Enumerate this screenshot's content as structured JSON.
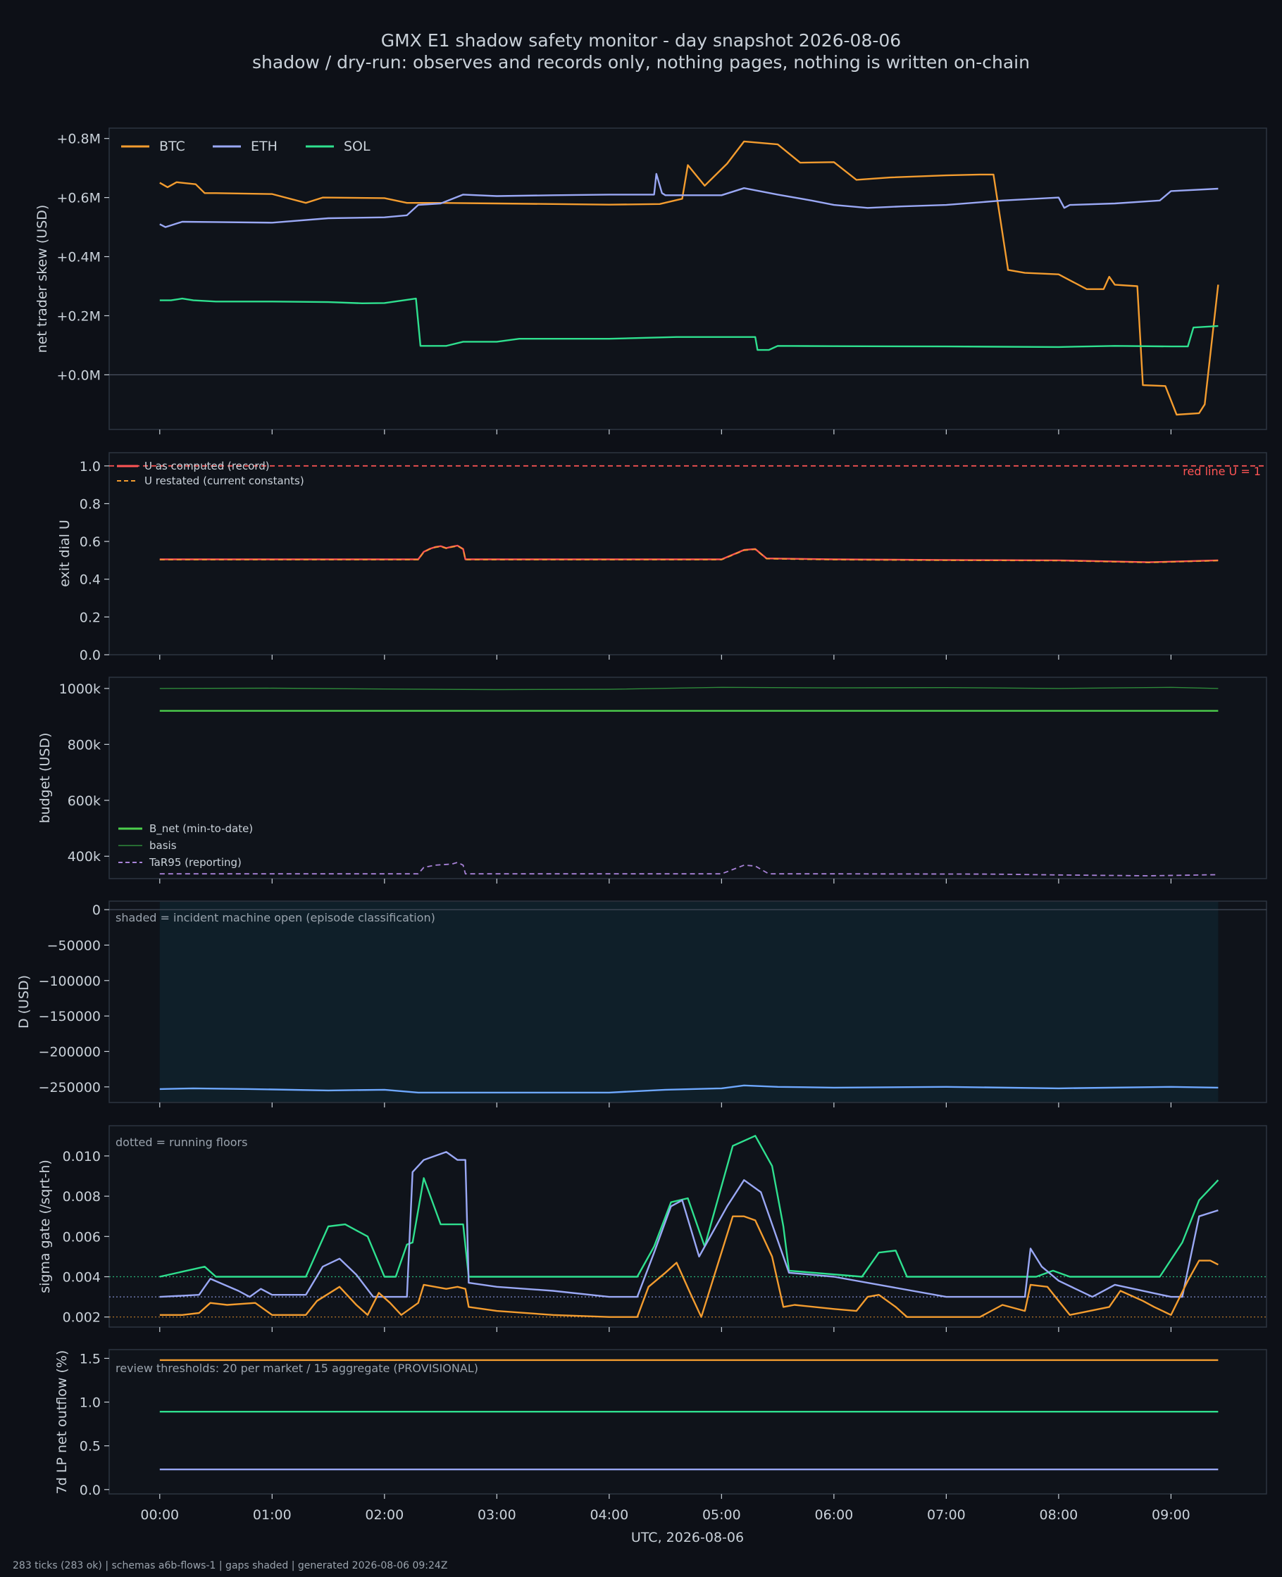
{
  "title": "GMX E1 shadow safety monitor - day snapshot 2026-08-06",
  "subtitle": "shadow / dry-run: observes and records only, nothing pages, nothing is written on-chain",
  "footer": "283 ticks (283 ok) | schemas a6b-flows-1 | gaps shaded | generated 2026-08-06 09:24Z",
  "colors": {
    "background": "#0d1017",
    "panel": "#0f131a",
    "btc": "#f39c2f",
    "eth": "#9aa8f5",
    "sol": "#2fe08f",
    "red": "#ff5555",
    "green": "#4ccf4c",
    "purple": "#a882d8",
    "blue": "#6ea8ff",
    "shade": "#0f1f29"
  },
  "chart_data": [
    {
      "type": "line",
      "ylabel": "net trader skew (USD)",
      "yticks": [
        "+0.8M",
        "+0.6M",
        "+0.4M",
        "+0.2M",
        "+0.0M"
      ],
      "ylim": [
        -185000,
        835000
      ],
      "legend": "top-left",
      "series": [
        {
          "name": "BTC",
          "color": "#f39c2f",
          "x": [
            0,
            0.07,
            0.15,
            0.32,
            0.4,
            0.5,
            1.0,
            1.3,
            1.45,
            2.0,
            2.2,
            2.5,
            3.0,
            4.0,
            4.45,
            4.65,
            4.7,
            4.85,
            5.05,
            5.2,
            5.5,
            5.7,
            6.0,
            6.2,
            6.5,
            7.0,
            7.3,
            7.42,
            7.55,
            7.7,
            8.0,
            8.25,
            8.4,
            8.45,
            8.5,
            8.7,
            8.75,
            8.95,
            9.05,
            9.25,
            9.3,
            9.42
          ],
          "y": [
            650000,
            635000,
            652000,
            645000,
            615000,
            615000,
            612000,
            582000,
            600000,
            598000,
            582000,
            582000,
            580000,
            576000,
            578000,
            596000,
            710000,
            640000,
            715000,
            790000,
            780000,
            718000,
            720000,
            660000,
            668000,
            675000,
            678000,
            678000,
            355000,
            345000,
            340000,
            290000,
            290000,
            332000,
            305000,
            300000,
            -35000,
            -38000,
            -135000,
            -130000,
            -100000,
            305000
          ]
        },
        {
          "name": "ETH",
          "color": "#9aa8f5",
          "x": [
            0,
            0.05,
            0.2,
            0.5,
            1.0,
            1.5,
            2.0,
            2.2,
            2.3,
            2.5,
            2.7,
            3.0,
            3.5,
            4.0,
            4.4,
            4.42,
            4.47,
            4.5,
            5.0,
            5.2,
            5.5,
            5.8,
            6.0,
            6.3,
            6.6,
            7.0,
            7.5,
            8.0,
            8.05,
            8.1,
            8.5,
            8.9,
            9.0,
            9.42
          ],
          "y": [
            510000,
            500000,
            518000,
            517000,
            515000,
            530000,
            533000,
            540000,
            575000,
            580000,
            610000,
            605000,
            608000,
            610000,
            610000,
            680000,
            615000,
            608000,
            608000,
            632000,
            610000,
            590000,
            575000,
            565000,
            570000,
            575000,
            590000,
            600000,
            565000,
            575000,
            580000,
            590000,
            622000,
            630000
          ]
        },
        {
          "name": "SOL",
          "color": "#2fe08f",
          "x": [
            0,
            0.1,
            0.2,
            0.3,
            0.5,
            1.0,
            1.5,
            1.8,
            2.0,
            2.28,
            2.32,
            2.55,
            2.7,
            3.0,
            3.2,
            4.0,
            4.3,
            4.6,
            5.0,
            5.3,
            5.32,
            5.42,
            5.5,
            6.0,
            7.0,
            8.0,
            8.5,
            9.0,
            9.15,
            9.2,
            9.42
          ],
          "y": [
            252000,
            252000,
            258000,
            252000,
            248000,
            248000,
            246000,
            242000,
            243000,
            258000,
            98000,
            98000,
            112000,
            112000,
            122000,
            122000,
            125000,
            128000,
            128000,
            128000,
            84000,
            84000,
            98000,
            97000,
            96000,
            94000,
            98000,
            96000,
            96000,
            160000,
            165000
          ]
        }
      ]
    },
    {
      "type": "line",
      "ylabel": "exit dial U",
      "yticks": [
        "0.0",
        "0.2",
        "0.4",
        "0.6",
        "0.8",
        "1.0"
      ],
      "ylim": [
        0,
        1.07
      ],
      "legend": "top-left",
      "annotation": "red line U = 1",
      "series": [
        {
          "name": "U as computed (record)",
          "color": "#ff5555",
          "style": "solid",
          "x": [
            0,
            2.3,
            2.35,
            2.4,
            2.45,
            2.5,
            2.55,
            2.6,
            2.65,
            2.7,
            2.72,
            5.0,
            5.2,
            5.3,
            5.4,
            6.0,
            7.0,
            8.0,
            8.8,
            9.42
          ],
          "y": [
            0.505,
            0.505,
            0.545,
            0.56,
            0.57,
            0.575,
            0.565,
            0.572,
            0.578,
            0.56,
            0.505,
            0.505,
            0.555,
            0.56,
            0.51,
            0.505,
            0.502,
            0.5,
            0.49,
            0.5
          ]
        },
        {
          "name": "U restated (current constants)",
          "color": "#f39c2f",
          "style": "dashed",
          "x": [
            0,
            2.3,
            2.35,
            2.4,
            2.45,
            2.5,
            2.55,
            2.6,
            2.65,
            2.7,
            2.72,
            5.0,
            5.2,
            5.3,
            5.4,
            6.0,
            7.0,
            8.0,
            8.8,
            9.42
          ],
          "y": [
            0.503,
            0.503,
            0.543,
            0.558,
            0.568,
            0.573,
            0.563,
            0.57,
            0.576,
            0.558,
            0.503,
            0.503,
            0.553,
            0.558,
            0.508,
            0.503,
            0.5,
            0.498,
            0.488,
            0.498
          ]
        }
      ],
      "reference_line": 1.0
    },
    {
      "type": "line",
      "ylabel": "budget (USD)",
      "yticks": [
        "400k",
        "600k",
        "800k",
        "1000k"
      ],
      "ylim": [
        320000,
        1040000
      ],
      "legend": "bottom-left",
      "series": [
        {
          "name": "B_net (min-to-date)",
          "color": "#4ccf4c",
          "style": "solid",
          "x": [
            0,
            9.42
          ],
          "y": [
            920000,
            920000
          ]
        },
        {
          "name": "basis",
          "color": "#2e8a3a",
          "style": "thin",
          "x": [
            0,
            1,
            2,
            3,
            4,
            5,
            6,
            7,
            8,
            9,
            9.42
          ],
          "y": [
            1000000,
            1001000,
            998000,
            996000,
            997000,
            1004000,
            1002000,
            1003000,
            1000000,
            1004000,
            1000000
          ]
        },
        {
          "name": "TaR95 (reporting)",
          "color": "#a882d8",
          "style": "dashed",
          "x": [
            0,
            2.3,
            2.35,
            2.45,
            2.6,
            2.65,
            2.7,
            2.72,
            5.0,
            5.2,
            5.3,
            5.42,
            6.0,
            7.4,
            8.0,
            8.8,
            9.42
          ],
          "y": [
            337000,
            337000,
            360000,
            368000,
            372000,
            378000,
            368000,
            337000,
            337000,
            368000,
            365000,
            337000,
            337000,
            336000,
            333000,
            330000,
            334000
          ]
        }
      ]
    },
    {
      "type": "line",
      "ylabel": "D (USD)",
      "yticks": [
        "0",
        "−50000",
        "−100000",
        "−150000",
        "−200000",
        "−250000"
      ],
      "ylim": [
        -272000,
        12000
      ],
      "note": "shaded = incident machine open (episode classification)",
      "shaded_range": [
        0,
        9.42
      ],
      "series": [
        {
          "name": "D",
          "color": "#6ea8ff",
          "x": [
            0,
            0.3,
            0.8,
            1.5,
            2.0,
            2.3,
            3.0,
            4.0,
            4.5,
            5.0,
            5.2,
            5.5,
            6.0,
            7.0,
            8.0,
            9.0,
            9.42
          ],
          "y": [
            -253000,
            -252000,
            -253000,
            -255000,
            -254000,
            -258000,
            -258000,
            -258000,
            -254000,
            -252000,
            -248000,
            -250000,
            -251000,
            -250000,
            -252000,
            -250000,
            -251000
          ]
        }
      ]
    },
    {
      "type": "line",
      "ylabel": "sigma gate (/sqrt-h)",
      "yticks": [
        "0.002",
        "0.004",
        "0.006",
        "0.008",
        "0.010"
      ],
      "ylim": [
        0.0015,
        0.0115
      ],
      "note": "dotted = running floors",
      "floors": [
        {
          "color": "#2fe08f",
          "y": 0.004
        },
        {
          "color": "#9aa8f5",
          "y": 0.003
        },
        {
          "color": "#f39c2f",
          "y": 0.002
        }
      ],
      "series": [
        {
          "name": "SOL",
          "color": "#2fe08f",
          "x": [
            0,
            0.4,
            0.5,
            1.3,
            1.5,
            1.65,
            1.85,
            2.0,
            2.1,
            2.2,
            2.25,
            2.35,
            2.5,
            2.7,
            2.75,
            4.25,
            4.4,
            4.55,
            4.7,
            4.85,
            5.1,
            5.3,
            5.45,
            5.55,
            5.6,
            6.25,
            6.4,
            6.55,
            6.65,
            7.8,
            7.95,
            8.1,
            8.9,
            9.1,
            9.25,
            9.42
          ],
          "y": [
            0.004,
            0.0045,
            0.004,
            0.004,
            0.0065,
            0.0066,
            0.006,
            0.004,
            0.004,
            0.0056,
            0.0057,
            0.0089,
            0.0066,
            0.0066,
            0.004,
            0.004,
            0.0055,
            0.0077,
            0.0079,
            0.0055,
            0.0105,
            0.011,
            0.0095,
            0.0065,
            0.0043,
            0.004,
            0.0052,
            0.0053,
            0.004,
            0.004,
            0.0043,
            0.004,
            0.004,
            0.0057,
            0.0078,
            0.0088
          ]
        },
        {
          "name": "ETH",
          "color": "#9aa8f5",
          "x": [
            0,
            0.35,
            0.45,
            0.7,
            0.8,
            0.9,
            1.0,
            1.3,
            1.45,
            1.6,
            1.75,
            1.9,
            2.2,
            2.25,
            2.35,
            2.45,
            2.55,
            2.65,
            2.72,
            2.75,
            3.0,
            3.5,
            4.0,
            4.25,
            4.4,
            4.55,
            4.65,
            4.8,
            5.05,
            5.2,
            5.35,
            5.55,
            5.6,
            6.0,
            7.0,
            7.7,
            7.75,
            7.85,
            8.0,
            8.3,
            8.5,
            9.0,
            9.1,
            9.25,
            9.42
          ],
          "y": [
            0.003,
            0.0031,
            0.0039,
            0.0033,
            0.003,
            0.0034,
            0.0031,
            0.0031,
            0.0045,
            0.0049,
            0.0041,
            0.003,
            0.003,
            0.0092,
            0.0098,
            0.01,
            0.0102,
            0.0098,
            0.0098,
            0.0037,
            0.0035,
            0.0033,
            0.003,
            0.003,
            0.0052,
            0.0075,
            0.0078,
            0.005,
            0.0075,
            0.0088,
            0.0082,
            0.005,
            0.0042,
            0.004,
            0.003,
            0.003,
            0.0054,
            0.0045,
            0.0038,
            0.003,
            0.0036,
            0.003,
            0.003,
            0.007,
            0.0073
          ]
        },
        {
          "name": "BTC",
          "color": "#f39c2f",
          "x": [
            0,
            0.2,
            0.35,
            0.45,
            0.6,
            0.85,
            1.0,
            1.3,
            1.4,
            1.6,
            1.75,
            1.85,
            1.95,
            2.05,
            2.15,
            2.3,
            2.35,
            2.45,
            2.55,
            2.65,
            2.72,
            2.75,
            3.0,
            3.5,
            4.0,
            4.25,
            4.35,
            4.5,
            4.6,
            4.72,
            4.82,
            5.1,
            5.2,
            5.3,
            5.45,
            5.55,
            5.65,
            6.0,
            6.2,
            6.3,
            6.4,
            6.55,
            6.65,
            7.3,
            7.5,
            7.7,
            7.75,
            7.9,
            8.1,
            8.45,
            8.55,
            8.75,
            8.85,
            9.0,
            9.15,
            9.25,
            9.35,
            9.42
          ],
          "y": [
            0.0021,
            0.0021,
            0.0022,
            0.0027,
            0.0026,
            0.0027,
            0.0021,
            0.0021,
            0.0028,
            0.0035,
            0.0026,
            0.0021,
            0.0032,
            0.0027,
            0.0021,
            0.0027,
            0.0036,
            0.0035,
            0.0034,
            0.0035,
            0.0034,
            0.0025,
            0.0023,
            0.0021,
            0.002,
            0.002,
            0.0035,
            0.0042,
            0.0047,
            0.0032,
            0.002,
            0.007,
            0.007,
            0.0068,
            0.005,
            0.0025,
            0.0026,
            0.0024,
            0.0023,
            0.003,
            0.0031,
            0.0025,
            0.002,
            0.002,
            0.0026,
            0.0023,
            0.0036,
            0.0035,
            0.0021,
            0.0025,
            0.0033,
            0.0028,
            0.0025,
            0.0021,
            0.0038,
            0.0048,
            0.0048,
            0.0046
          ]
        }
      ]
    },
    {
      "type": "line",
      "ylabel": "7d LP net outflow (%)",
      "yticks": [
        "0.0",
        "0.5",
        "1.0",
        "1.5"
      ],
      "ylim": [
        -0.05,
        1.6
      ],
      "note": "review thresholds: 20 per market / 15 aggregate (PROVISIONAL)",
      "series": [
        {
          "name": "BTC",
          "color": "#f39c2f",
          "x": [
            0,
            9.42
          ],
          "y": [
            1.48,
            1.48
          ]
        },
        {
          "name": "SOL",
          "color": "#2fe08f",
          "x": [
            0,
            9.42
          ],
          "y": [
            0.89,
            0.89
          ]
        },
        {
          "name": "ETH",
          "color": "#9aa8f5",
          "x": [
            0,
            9.42
          ],
          "y": [
            0.23,
            0.23
          ]
        }
      ]
    }
  ],
  "x_axis": {
    "label": "UTC, 2026-08-06",
    "ticks": [
      "00:00",
      "01:00",
      "02:00",
      "03:00",
      "04:00",
      "05:00",
      "06:00",
      "07:00",
      "08:00",
      "09:00"
    ],
    "range_hours": [
      -0.45,
      9.85
    ]
  }
}
